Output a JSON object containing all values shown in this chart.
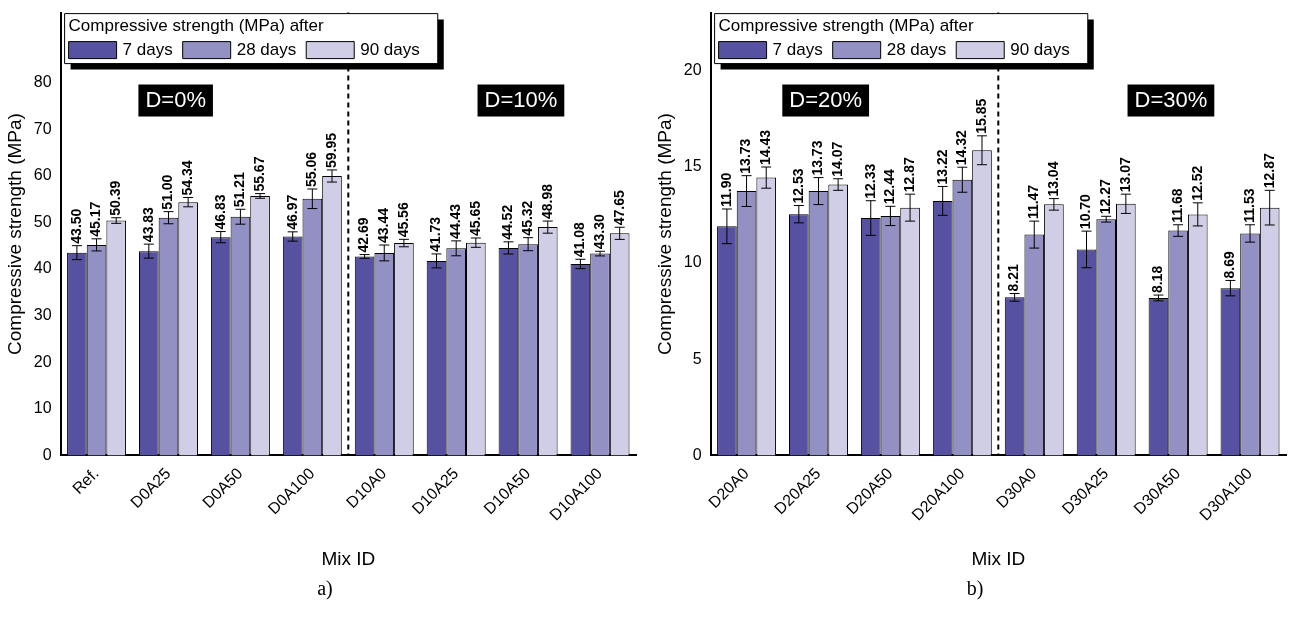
{
  "chart_data": [
    {
      "type": "bar",
      "xlabel": "Mix ID",
      "ylabel": "Compressive strength (MPa)",
      "legend_title": "Compressive strength (MPa) after",
      "legend": "top left",
      "grid": false,
      "categories": [
        "Ref.",
        "D0A25",
        "D0A50",
        "D0A100",
        "D10A0",
        "D10A25",
        "D10A50",
        "D10A100"
      ],
      "series": [
        {
          "name": "7 days",
          "color": "#5651a0",
          "values": [
            43.5,
            43.83,
            46.83,
            46.97,
            42.69,
            41.73,
            44.52,
            41.08
          ],
          "errors": [
            1.5,
            1.5,
            1.2,
            1.0,
            0.4,
            1.5,
            1.3,
            1.0
          ],
          "value_labels": [
            "43.50",
            "43.83",
            "46.83",
            "46.97",
            "42.69",
            "41.73",
            "44.52",
            "41.08"
          ]
        },
        {
          "name": "28 days",
          "color": "#9390c4",
          "values": [
            45.17,
            51.0,
            51.21,
            55.06,
            43.44,
            44.43,
            45.32,
            43.3
          ],
          "errors": [
            1.3,
            1.3,
            1.6,
            2.1,
            1.7,
            1.6,
            1.4,
            0.5
          ],
          "value_labels": [
            "45.17",
            "51.00",
            "51.21",
            "55.06",
            "43.44",
            "44.43",
            "45.32",
            "43.30"
          ]
        },
        {
          "name": "90 days",
          "color": "#d0cee6",
          "values": [
            50.39,
            54.34,
            55.67,
            59.95,
            45.56,
            45.65,
            48.98,
            47.65
          ],
          "errors": [
            0.6,
            1.0,
            0.5,
            1.3,
            0.8,
            1.0,
            1.3,
            1.3
          ],
          "value_labels": [
            "50.39",
            "54.34",
            "55.67",
            "59.95",
            "45.56",
            "45.65",
            "48.98",
            "47.65"
          ]
        }
      ],
      "ylim": [
        0,
        95
      ],
      "yticks": [
        0,
        10,
        20,
        30,
        40,
        50,
        60,
        70,
        80
      ],
      "annotations": [
        "D=0%",
        "D=10%",
        "a)"
      ]
    },
    {
      "type": "bar",
      "xlabel": "Mix ID",
      "ylabel": "Compressive strength (MPa)",
      "legend_title": "Compressive strength (MPa) after",
      "legend": "top left",
      "grid": false,
      "categories": [
        "D20A0",
        "D20A25",
        "D20A50",
        "D20A100",
        "D30A0",
        "D30A25",
        "D30A50",
        "D30A100"
      ],
      "series": [
        {
          "name": "7 days",
          "color": "#5651a0",
          "values": [
            11.9,
            12.53,
            12.33,
            13.22,
            8.21,
            10.7,
            8.18,
            8.69
          ],
          "errors": [
            0.9,
            0.45,
            0.9,
            0.75,
            0.2,
            0.95,
            0.15,
            0.4
          ],
          "value_labels": [
            "11.90",
            "12.53",
            "12.33",
            "13.22",
            "8.21",
            "10.70",
            "8.18",
            "8.69"
          ]
        },
        {
          "name": "28 days",
          "color": "#9390c4",
          "values": [
            13.73,
            13.73,
            12.44,
            14.32,
            11.47,
            12.27,
            11.68,
            11.53
          ],
          "errors": [
            0.8,
            0.7,
            0.5,
            0.65,
            0.7,
            0.15,
            0.3,
            0.45
          ],
          "value_labels": [
            "13.73",
            "13.73",
            "12.44",
            "14.32",
            "11.47",
            "12.27",
            "11.68",
            "11.53"
          ]
        },
        {
          "name": "90 days",
          "color": "#d0cee6",
          "values": [
            14.43,
            14.07,
            12.87,
            15.85,
            13.04,
            13.07,
            12.52,
            12.87
          ],
          "errors": [
            0.55,
            0.3,
            0.7,
            0.75,
            0.3,
            0.5,
            0.6,
            0.9
          ],
          "value_labels": [
            "14.43",
            "14.07",
            "12.87",
            "15.85",
            "13.04",
            "13.07",
            "12.52",
            "12.87"
          ]
        }
      ],
      "ylim": [
        0,
        23
      ],
      "yticks": [
        0,
        5,
        10,
        15,
        20
      ],
      "annotations": [
        "D=20%",
        "D=30%",
        "b)"
      ]
    }
  ]
}
